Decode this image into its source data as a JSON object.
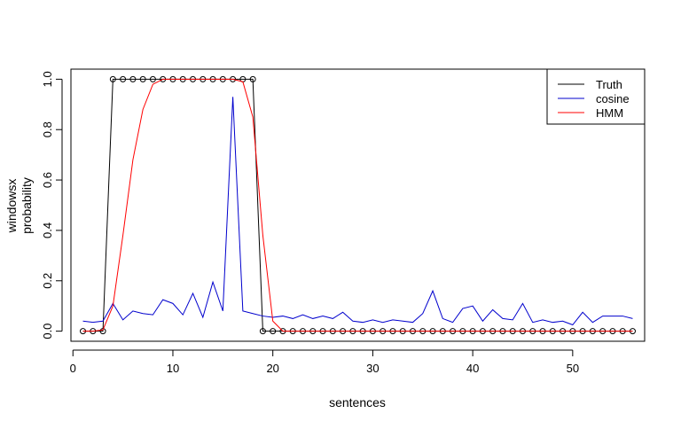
{
  "chart_data": {
    "type": "line",
    "title": "",
    "xlabel": "sentences",
    "ylabel_lines": [
      "windowsx",
      "probability"
    ],
    "xlim": [
      -0.2,
      57.2
    ],
    "ylim": [
      -0.04,
      1.04
    ],
    "xticks": [
      0,
      10,
      20,
      30,
      40,
      50
    ],
    "yticks": [
      0.0,
      0.2,
      0.4,
      0.6,
      0.8,
      1.0
    ],
    "ytick_labels": [
      "0.0",
      "0.2",
      "0.4",
      "0.6",
      "0.8",
      "1.0"
    ],
    "grid": false,
    "legend_position": "top-right",
    "x": [
      1,
      2,
      3,
      4,
      5,
      6,
      7,
      8,
      9,
      10,
      11,
      12,
      13,
      14,
      15,
      16,
      17,
      18,
      19,
      20,
      21,
      22,
      23,
      24,
      25,
      26,
      27,
      28,
      29,
      30,
      31,
      32,
      33,
      34,
      35,
      36,
      37,
      38,
      39,
      40,
      41,
      42,
      43,
      44,
      45,
      46,
      47,
      48,
      49,
      50,
      51,
      52,
      53,
      54,
      55,
      56
    ],
    "series": [
      {
        "name": "Truth",
        "color": "#000000",
        "markers": true,
        "values": [
          0,
          0,
          0,
          1,
          1,
          1,
          1,
          1,
          1,
          1,
          1,
          1,
          1,
          1,
          1,
          1,
          1,
          1,
          0,
          0,
          0,
          0,
          0,
          0,
          0,
          0,
          0,
          0,
          0,
          0,
          0,
          0,
          0,
          0,
          0,
          0,
          0,
          0,
          0,
          0,
          0,
          0,
          0,
          0,
          0,
          0,
          0,
          0,
          0,
          0,
          0,
          0,
          0,
          0,
          0,
          0
        ]
      },
      {
        "name": "cosine",
        "color": "#0000cd",
        "markers": false,
        "values": [
          0.04,
          0.035,
          0.04,
          0.11,
          0.045,
          0.08,
          0.07,
          0.065,
          0.125,
          0.11,
          0.065,
          0.15,
          0.055,
          0.195,
          0.08,
          0.93,
          0.08,
          0.07,
          0.06,
          0.055,
          0.06,
          0.05,
          0.065,
          0.05,
          0.06,
          0.05,
          0.075,
          0.04,
          0.035,
          0.045,
          0.035,
          0.045,
          0.04,
          0.035,
          0.07,
          0.16,
          0.05,
          0.035,
          0.09,
          0.1,
          0.04,
          0.085,
          0.05,
          0.045,
          0.11,
          0.035,
          0.045,
          0.035,
          0.04,
          0.025,
          0.075,
          0.035,
          0.06,
          0.06,
          0.06,
          0.05
        ]
      },
      {
        "name": "HMM",
        "color": "#ff0000",
        "markers": false,
        "values": [
          0,
          0,
          0.005,
          0.1,
          0.38,
          0.68,
          0.88,
          0.98,
          1,
          1,
          1,
          1,
          1,
          1,
          1,
          1,
          0.99,
          0.85,
          0.38,
          0.04,
          0,
          0,
          0,
          0,
          0,
          0,
          0,
          0,
          0,
          0,
          0,
          0,
          0,
          0,
          0,
          0,
          0,
          0,
          0,
          0,
          0,
          0,
          0,
          0,
          0,
          0,
          0,
          0,
          0,
          0,
          0,
          0,
          0,
          0,
          0,
          0
        ]
      }
    ]
  }
}
